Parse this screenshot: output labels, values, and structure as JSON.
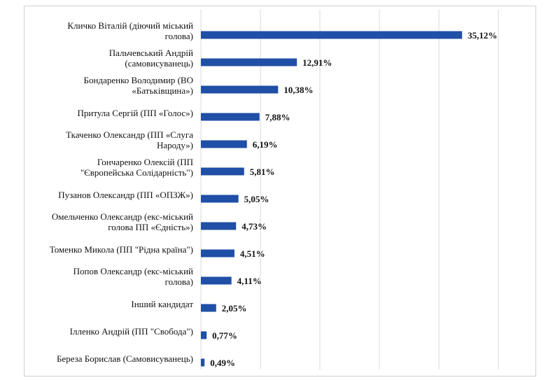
{
  "chart_data": {
    "type": "bar",
    "orientation": "horizontal",
    "categories": [
      [
        "Кличко Віталій (діючий міський",
        "голова)"
      ],
      [
        "Пальчевський Андрій",
        "(самовисуванець)"
      ],
      [
        "Бондаренко Володимир (ВО",
        "«Батьківщина»)"
      ],
      [
        "Притула Сергій (ПП «Голос»)"
      ],
      [
        "Ткаченко Олександр (ПП «Слуга",
        "Народу»)"
      ],
      [
        "Гончаренко Олексій (ПП",
        "\"Європейська Солідарність\")"
      ],
      [
        "Пузанов Олександр (ПП «ОПЗЖ»)"
      ],
      [
        "Омельченко Олександр (екс-міський",
        "голова ПП «Єдність»)"
      ],
      [
        "Томенко Микола (ПП \"Рідна країна\")"
      ],
      [
        "Попов Олександр (екс-міський",
        "голова)"
      ],
      [
        "Інший кандидат"
      ],
      [
        "Ілленко Андрій (ПП \"Свобода\")"
      ],
      [
        "Береза Борислав (Самовисуванець)"
      ]
    ],
    "values": [
      35.12,
      12.91,
      10.38,
      7.88,
      6.19,
      5.81,
      5.05,
      4.73,
      4.51,
      4.11,
      2.05,
      0.77,
      0.49
    ],
    "value_labels": [
      "35,12%",
      "12,91%",
      "10,38%",
      "7,88%",
      "6,19%",
      "5,81%",
      "5,05%",
      "4,73%",
      "4,51%",
      "4,11%",
      "2,05%",
      "0,77%",
      "0,49%"
    ],
    "xlim": [
      0,
      40
    ],
    "grid": true,
    "bar_color": "#1f4fa6",
    "grid_color": "#d9d9d9"
  }
}
